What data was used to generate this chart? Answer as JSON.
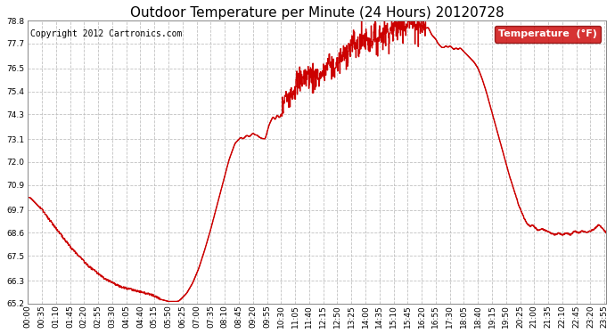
{
  "title": "Outdoor Temperature per Minute (24 Hours) 20120728",
  "copyright_text": "Copyright 2012 Cartronics.com",
  "legend_label": "Temperature  (°F)",
  "line_color": "#cc0000",
  "legend_bg": "#cc0000",
  "legend_text_color": "#ffffff",
  "background_color": "#ffffff",
  "grid_color": "#bbbbbb",
  "ylim": [
    65.2,
    78.8
  ],
  "yticks": [
    65.2,
    66.3,
    67.5,
    68.6,
    69.7,
    70.9,
    72.0,
    73.1,
    74.3,
    75.4,
    76.5,
    77.7,
    78.8
  ],
  "xtick_labels": [
    "00:00",
    "00:35",
    "01:10",
    "01:45",
    "02:20",
    "02:55",
    "03:30",
    "04:05",
    "04:40",
    "05:15",
    "05:50",
    "06:25",
    "07:00",
    "07:35",
    "08:10",
    "08:45",
    "09:20",
    "09:55",
    "10:30",
    "11:05",
    "11:40",
    "12:15",
    "12:50",
    "13:25",
    "14:00",
    "14:35",
    "15:10",
    "15:45",
    "16:20",
    "16:55",
    "17:30",
    "18:05",
    "18:40",
    "19:15",
    "19:50",
    "20:25",
    "21:00",
    "21:35",
    "22:10",
    "22:45",
    "23:20",
    "23:55"
  ],
  "title_fontsize": 11,
  "copyright_fontsize": 7,
  "tick_fontsize": 6.5,
  "legend_fontsize": 8,
  "curve": [
    [
      0,
      70.3
    ],
    [
      5,
      70.3
    ],
    [
      10,
      70.2
    ],
    [
      20,
      70.0
    ],
    [
      35,
      69.7
    ],
    [
      50,
      69.3
    ],
    [
      70,
      68.8
    ],
    [
      90,
      68.3
    ],
    [
      110,
      67.8
    ],
    [
      130,
      67.4
    ],
    [
      150,
      67.0
    ],
    [
      170,
      66.7
    ],
    [
      190,
      66.4
    ],
    [
      210,
      66.2
    ],
    [
      230,
      66.0
    ],
    [
      250,
      65.9
    ],
    [
      270,
      65.8
    ],
    [
      290,
      65.7
    ],
    [
      310,
      65.6
    ],
    [
      320,
      65.5
    ],
    [
      330,
      65.4
    ],
    [
      340,
      65.35
    ],
    [
      350,
      65.3
    ],
    [
      360,
      65.3
    ],
    [
      370,
      65.3
    ],
    [
      375,
      65.32
    ],
    [
      380,
      65.4
    ],
    [
      395,
      65.7
    ],
    [
      410,
      66.2
    ],
    [
      425,
      66.9
    ],
    [
      440,
      67.8
    ],
    [
      455,
      68.8
    ],
    [
      470,
      69.9
    ],
    [
      485,
      71.0
    ],
    [
      500,
      72.1
    ],
    [
      515,
      72.9
    ],
    [
      520,
      73.0
    ],
    [
      525,
      73.1
    ],
    [
      530,
      73.2
    ],
    [
      535,
      73.1
    ],
    [
      540,
      73.2
    ],
    [
      545,
      73.3
    ],
    [
      550,
      73.2
    ],
    [
      555,
      73.3
    ],
    [
      560,
      73.4
    ],
    [
      565,
      73.3
    ],
    [
      570,
      73.3
    ],
    [
      575,
      73.2
    ],
    [
      580,
      73.15
    ],
    [
      590,
      73.1
    ],
    [
      600,
      73.8
    ],
    [
      610,
      74.2
    ],
    [
      615,
      74.0
    ],
    [
      620,
      74.3
    ],
    [
      625,
      74.1
    ],
    [
      630,
      74.3
    ],
    [
      640,
      75.0
    ],
    [
      650,
      75.3
    ],
    [
      660,
      75.5
    ],
    [
      670,
      75.8
    ],
    [
      680,
      76.0
    ],
    [
      690,
      76.1
    ],
    [
      700,
      76.2
    ],
    [
      710,
      76.0
    ],
    [
      715,
      76.1
    ],
    [
      720,
      76.2
    ],
    [
      725,
      76.0
    ],
    [
      730,
      76.3
    ],
    [
      735,
      76.1
    ],
    [
      740,
      76.4
    ],
    [
      750,
      76.8
    ],
    [
      760,
      76.5
    ],
    [
      770,
      76.7
    ],
    [
      780,
      77.0
    ],
    [
      790,
      77.2
    ],
    [
      800,
      77.5
    ],
    [
      810,
      77.7
    ],
    [
      820,
      77.5
    ],
    [
      830,
      77.8
    ],
    [
      840,
      78.0
    ],
    [
      850,
      77.8
    ],
    [
      860,
      78.1
    ],
    [
      870,
      77.9
    ],
    [
      875,
      78.2
    ],
    [
      880,
      78.0
    ],
    [
      885,
      78.3
    ],
    [
      890,
      78.1
    ],
    [
      895,
      78.4
    ],
    [
      900,
      78.2
    ],
    [
      905,
      78.5
    ],
    [
      910,
      78.3
    ],
    [
      915,
      78.6
    ],
    [
      920,
      78.4
    ],
    [
      925,
      78.7
    ],
    [
      930,
      78.5
    ],
    [
      935,
      78.8
    ],
    [
      940,
      78.6
    ],
    [
      945,
      78.8
    ],
    [
      950,
      78.7
    ],
    [
      955,
      78.8
    ],
    [
      960,
      78.6
    ],
    [
      965,
      78.7
    ],
    [
      970,
      78.5
    ],
    [
      975,
      78.7
    ],
    [
      980,
      78.5
    ],
    [
      985,
      78.6
    ],
    [
      990,
      78.4
    ],
    [
      995,
      78.5
    ],
    [
      1000,
      78.3
    ],
    [
      1005,
      78.1
    ],
    [
      1010,
      78.0
    ],
    [
      1015,
      77.9
    ],
    [
      1020,
      77.7
    ],
    [
      1025,
      77.6
    ],
    [
      1030,
      77.5
    ],
    [
      1035,
      77.5
    ],
    [
      1040,
      77.6
    ],
    [
      1045,
      77.5
    ],
    [
      1050,
      77.6
    ],
    [
      1055,
      77.5
    ],
    [
      1060,
      77.4
    ],
    [
      1065,
      77.5
    ],
    [
      1070,
      77.4
    ],
    [
      1075,
      77.5
    ],
    [
      1080,
      77.4
    ],
    [
      1085,
      77.3
    ],
    [
      1090,
      77.2
    ],
    [
      1100,
      77.0
    ],
    [
      1110,
      76.8
    ],
    [
      1120,
      76.5
    ],
    [
      1130,
      76.0
    ],
    [
      1140,
      75.4
    ],
    [
      1150,
      74.7
    ],
    [
      1160,
      74.0
    ],
    [
      1170,
      73.3
    ],
    [
      1180,
      72.6
    ],
    [
      1190,
      71.9
    ],
    [
      1200,
      71.2
    ],
    [
      1210,
      70.6
    ],
    [
      1220,
      70.0
    ],
    [
      1230,
      69.5
    ],
    [
      1240,
      69.1
    ],
    [
      1245,
      69.0
    ],
    [
      1250,
      68.9
    ],
    [
      1255,
      69.0
    ],
    [
      1260,
      68.9
    ],
    [
      1265,
      68.8
    ],
    [
      1270,
      68.7
    ],
    [
      1280,
      68.8
    ],
    [
      1290,
      68.7
    ],
    [
      1300,
      68.6
    ],
    [
      1310,
      68.5
    ],
    [
      1320,
      68.6
    ],
    [
      1330,
      68.5
    ],
    [
      1340,
      68.6
    ],
    [
      1350,
      68.5
    ],
    [
      1360,
      68.7
    ],
    [
      1370,
      68.6
    ],
    [
      1380,
      68.7
    ],
    [
      1390,
      68.6
    ],
    [
      1400,
      68.7
    ],
    [
      1410,
      68.8
    ],
    [
      1415,
      68.9
    ],
    [
      1420,
      69.0
    ],
    [
      1425,
      68.9
    ],
    [
      1430,
      68.8
    ],
    [
      1435,
      68.7
    ],
    [
      1439,
      68.6
    ]
  ]
}
